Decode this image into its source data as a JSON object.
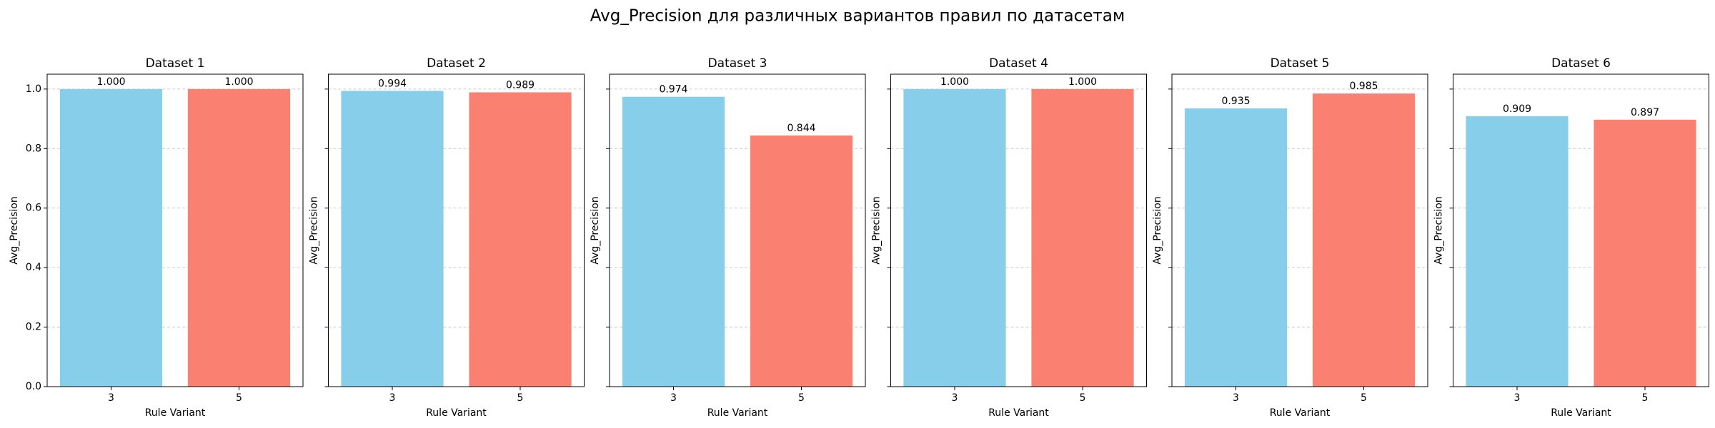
{
  "title": "Avg_Precision для различных вариантов правил по датасетам",
  "chart_data": [
    {
      "type": "bar",
      "title": "Dataset 1",
      "xlabel": "Rule Variant",
      "ylabel": "Avg_Precision",
      "categories": [
        "3",
        "5"
      ],
      "values": [
        1.0,
        1.0
      ],
      "value_labels": [
        "1.000",
        "1.000"
      ],
      "colors": [
        "#87ceeb",
        "#fa8072"
      ],
      "ylim": [
        0,
        1.05
      ],
      "yticks": [
        {
          "value": 0,
          "label": "0.0"
        },
        0.2,
        0.4,
        0.6,
        0.8,
        {
          "value": 1,
          "label": "1.0"
        }
      ],
      "grid": true,
      "show_ytick_labels": true
    },
    {
      "type": "bar",
      "title": "Dataset 2",
      "xlabel": "Rule Variant",
      "ylabel": "Avg_Precision",
      "categories": [
        "3",
        "5"
      ],
      "values": [
        0.994,
        0.989
      ],
      "value_labels": [
        "0.994",
        "0.989"
      ],
      "colors": [
        "#87ceeb",
        "#fa8072"
      ],
      "ylim": [
        0,
        1.05
      ],
      "yticks": [
        0,
        0.2,
        0.4,
        0.6,
        0.8,
        1
      ],
      "grid": true,
      "show_ytick_labels": false
    },
    {
      "type": "bar",
      "title": "Dataset 3",
      "xlabel": "Rule Variant",
      "ylabel": "Avg_Precision",
      "categories": [
        "3",
        "5"
      ],
      "values": [
        0.974,
        0.844
      ],
      "value_labels": [
        "0.974",
        "0.844"
      ],
      "colors": [
        "#87ceeb",
        "#fa8072"
      ],
      "ylim": [
        0,
        1.05
      ],
      "yticks": [
        0,
        0.2,
        0.4,
        0.6,
        0.8,
        1
      ],
      "grid": true,
      "show_ytick_labels": false
    },
    {
      "type": "bar",
      "title": "Dataset 4",
      "xlabel": "Rule Variant",
      "ylabel": "Avg_Precision",
      "categories": [
        "3",
        "5"
      ],
      "values": [
        1.0,
        1.0
      ],
      "value_labels": [
        "1.000",
        "1.000"
      ],
      "colors": [
        "#87ceeb",
        "#fa8072"
      ],
      "ylim": [
        0,
        1.05
      ],
      "yticks": [
        0,
        0.2,
        0.4,
        0.6,
        0.8,
        1
      ],
      "grid": true,
      "show_ytick_labels": false
    },
    {
      "type": "bar",
      "title": "Dataset 5",
      "xlabel": "Rule Variant",
      "ylabel": "Avg_Precision",
      "categories": [
        "3",
        "5"
      ],
      "values": [
        0.935,
        0.985
      ],
      "value_labels": [
        "0.935",
        "0.985"
      ],
      "colors": [
        "#87ceeb",
        "#fa8072"
      ],
      "ylim": [
        0,
        1.05
      ],
      "yticks": [
        0,
        0.2,
        0.4,
        0.6,
        0.8,
        1
      ],
      "grid": true,
      "show_ytick_labels": false
    },
    {
      "type": "bar",
      "title": "Dataset 6",
      "xlabel": "Rule Variant",
      "ylabel": "Avg_Precision",
      "categories": [
        "3",
        "5"
      ],
      "values": [
        0.909,
        0.897
      ],
      "value_labels": [
        "0.909",
        "0.897"
      ],
      "colors": [
        "#87ceeb",
        "#fa8072"
      ],
      "ylim": [
        0,
        1.05
      ],
      "yticks": [
        0,
        0.2,
        0.4,
        0.6,
        0.8,
        1
      ],
      "grid": true,
      "show_ytick_labels": false
    }
  ]
}
